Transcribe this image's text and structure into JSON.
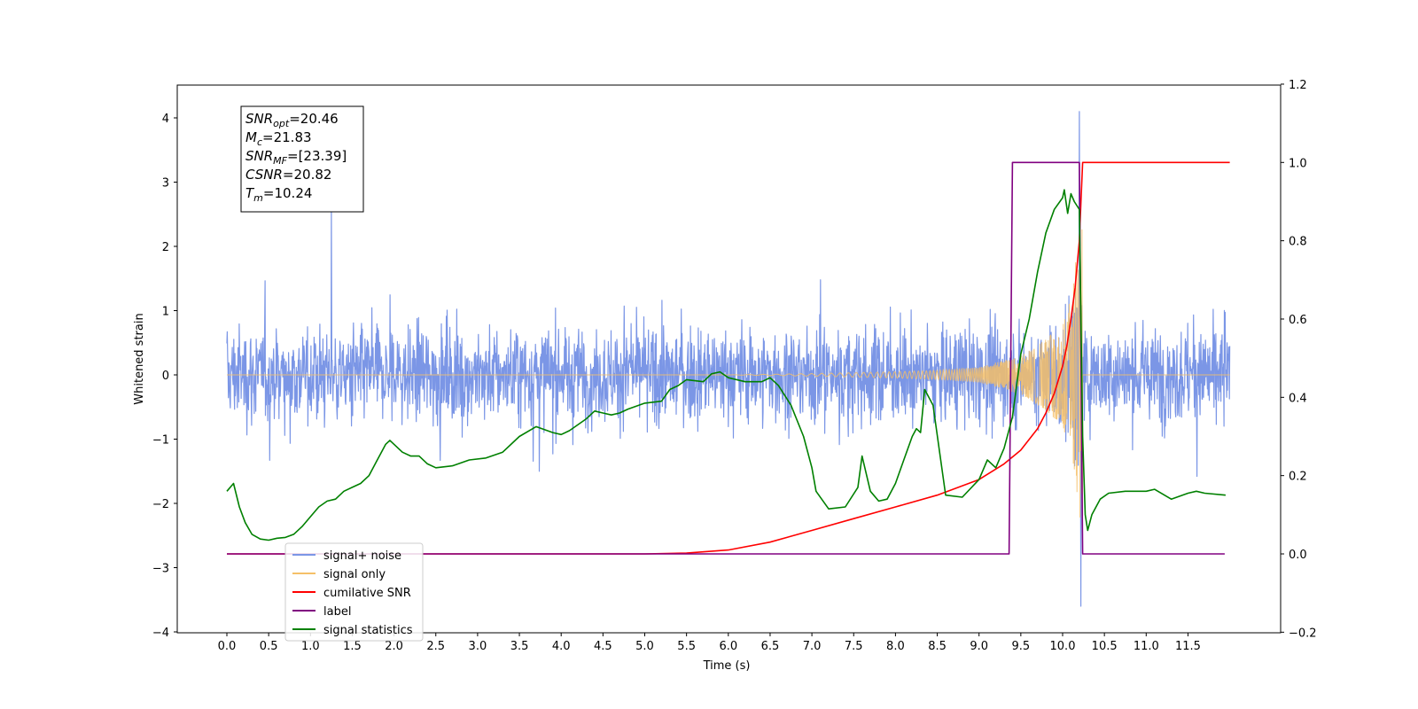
{
  "chart_data": {
    "type": "line",
    "title": "",
    "xlabel": "Time (s)",
    "ylabel": "Whitened strain",
    "ylabel_right": "",
    "xlim": [
      -0.6,
      12.6
    ],
    "ylim": [
      -4,
      4.5
    ],
    "ylim_right": [
      -0.2,
      1.2
    ],
    "x_ticks": [
      0.0,
      0.5,
      1.0,
      1.5,
      2.0,
      2.5,
      3.0,
      3.5,
      4.0,
      4.5,
      5.0,
      5.5,
      6.0,
      6.5,
      7.0,
      7.5,
      8.0,
      8.5,
      9.0,
      9.5,
      10.0,
      10.5,
      11.0,
      11.5
    ],
    "x_tick_labels": [
      "0.0",
      "0.5",
      "1.0",
      "1.5",
      "2.0",
      "2.5",
      "3.0",
      "3.5",
      "4.0",
      "4.5",
      "5.0",
      "5.5",
      "6.0",
      "6.5",
      "7.0",
      "7.5",
      "8.0",
      "8.5",
      "9.0",
      "9.5",
      "10.0",
      "10.5",
      "11.0",
      "11.5"
    ],
    "y_ticks": [
      -4,
      -3,
      -2,
      -1,
      0,
      1,
      2,
      3,
      4
    ],
    "y_tick_labels": [
      "−4",
      "−3",
      "−2",
      "−1",
      "0",
      "1",
      "2",
      "3",
      "4"
    ],
    "y_ticks_right": [
      -0.2,
      0.0,
      0.2,
      0.4,
      0.6,
      0.8,
      1.0,
      1.2
    ],
    "y_tick_labels_right": [
      "−0.2",
      "0.0",
      "0.2",
      "0.4",
      "0.6",
      "0.8",
      "1.0",
      "1.2"
    ],
    "grid": false,
    "legend_position": "lower-left",
    "annotation_box": {
      "lines": [
        {
          "base": "SNR",
          "sub": "opt",
          "value": "=20.46"
        },
        {
          "base": "M",
          "sub": "c",
          "value": "=21.83"
        },
        {
          "base": "SNR",
          "sub": "MF",
          "value": "=[23.39]"
        },
        {
          "base": "CSNR",
          "sub": "",
          "value": "=20.82"
        },
        {
          "base": "T",
          "sub": "m",
          "value": "=10.24"
        }
      ]
    },
    "series": [
      {
        "name": "signal+ noise",
        "axis": "left",
        "color": "#7b96e6",
        "style": "noise",
        "x_range": [
          0.0,
          12.0
        ],
        "envelope_typical": 1.4,
        "noted_peaks": [
          [
            1.25,
            2.6
          ],
          [
            10.2,
            4.1
          ],
          [
            10.22,
            -3.6
          ]
        ]
      },
      {
        "name": "signal only",
        "axis": "left",
        "color": "#f5c068",
        "style": "chirp",
        "x_range": [
          0.0,
          12.0
        ],
        "merger_time": 10.24,
        "amplitude_points": [
          [
            6.0,
            0.0
          ],
          [
            7.0,
            0.02
          ],
          [
            8.0,
            0.05
          ],
          [
            8.5,
            0.07
          ],
          [
            9.0,
            0.12
          ],
          [
            9.5,
            0.3
          ],
          [
            9.8,
            0.55
          ],
          [
            10.0,
            0.8
          ],
          [
            10.1,
            1.2
          ],
          [
            10.2,
            2.2
          ],
          [
            10.24,
            2.3
          ]
        ]
      },
      {
        "name": "cumilative SNR",
        "axis": "right",
        "color": "#ff0000",
        "x": [
          0.0,
          5.0,
          5.5,
          6.0,
          6.5,
          7.0,
          7.5,
          8.0,
          8.5,
          9.0,
          9.3,
          9.5,
          9.7,
          9.8,
          9.9,
          10.0,
          10.05,
          10.1,
          10.15,
          10.2,
          10.22,
          10.24,
          10.25,
          12.0
        ],
        "values": [
          0.0,
          0.0,
          0.002,
          0.01,
          0.03,
          0.06,
          0.09,
          0.12,
          0.15,
          0.19,
          0.23,
          0.265,
          0.32,
          0.36,
          0.41,
          0.48,
          0.53,
          0.6,
          0.68,
          0.8,
          0.9,
          1.0,
          1.0,
          1.0
        ]
      },
      {
        "name": "label",
        "axis": "right",
        "color": "#800080",
        "x": [
          0.0,
          9.36,
          9.4,
          9.43,
          10.18,
          10.2,
          10.24,
          11.94
        ],
        "values": [
          0.0,
          0.0,
          1.0,
          1.0,
          1.0,
          1.0,
          0.0,
          0.0
        ]
      },
      {
        "name": "signal statistics",
        "axis": "right",
        "color": "#008000",
        "x": [
          0.0,
          0.08,
          0.15,
          0.22,
          0.3,
          0.4,
          0.5,
          0.6,
          0.7,
          0.8,
          0.9,
          1.0,
          1.1,
          1.2,
          1.3,
          1.4,
          1.5,
          1.6,
          1.7,
          1.8,
          1.9,
          1.95,
          2.1,
          2.2,
          2.3,
          2.4,
          2.5,
          2.7,
          2.9,
          3.1,
          3.3,
          3.5,
          3.7,
          3.9,
          4.0,
          4.1,
          4.3,
          4.4,
          4.5,
          4.6,
          4.7,
          4.8,
          5.0,
          5.2,
          5.3,
          5.4,
          5.5,
          5.7,
          5.8,
          5.9,
          6.0,
          6.2,
          6.4,
          6.5,
          6.6,
          6.75,
          6.9,
          7.0,
          7.05,
          7.2,
          7.4,
          7.55,
          7.6,
          7.7,
          7.8,
          7.9,
          8.0,
          8.1,
          8.2,
          8.25,
          8.3,
          8.35,
          8.45,
          8.6,
          8.8,
          9.0,
          9.1,
          9.2,
          9.3,
          9.4,
          9.5,
          9.6,
          9.7,
          9.8,
          9.9,
          10.0,
          10.02,
          10.06,
          10.1,
          10.14,
          10.2,
          10.24,
          10.27,
          10.3,
          10.35,
          10.45,
          10.55,
          10.75,
          11.0,
          11.1,
          11.3,
          11.5,
          11.6,
          11.7,
          11.95
        ],
        "values": [
          0.16,
          0.18,
          0.12,
          0.08,
          0.05,
          0.038,
          0.035,
          0.04,
          0.042,
          0.05,
          0.07,
          0.095,
          0.12,
          0.135,
          0.14,
          0.16,
          0.17,
          0.18,
          0.2,
          0.24,
          0.28,
          0.29,
          0.26,
          0.25,
          0.25,
          0.23,
          0.22,
          0.225,
          0.24,
          0.245,
          0.26,
          0.3,
          0.325,
          0.31,
          0.305,
          0.315,
          0.345,
          0.365,
          0.36,
          0.355,
          0.36,
          0.37,
          0.385,
          0.39,
          0.42,
          0.43,
          0.445,
          0.44,
          0.46,
          0.465,
          0.45,
          0.44,
          0.44,
          0.45,
          0.43,
          0.38,
          0.3,
          0.22,
          0.16,
          0.115,
          0.12,
          0.17,
          0.25,
          0.16,
          0.135,
          0.14,
          0.18,
          0.24,
          0.3,
          0.32,
          0.31,
          0.42,
          0.38,
          0.15,
          0.145,
          0.19,
          0.24,
          0.22,
          0.27,
          0.35,
          0.51,
          0.6,
          0.72,
          0.82,
          0.88,
          0.91,
          0.93,
          0.87,
          0.92,
          0.9,
          0.88,
          0.3,
          0.1,
          0.06,
          0.1,
          0.14,
          0.155,
          0.16,
          0.16,
          0.165,
          0.14,
          0.155,
          0.16,
          0.155,
          0.15
        ]
      }
    ]
  }
}
